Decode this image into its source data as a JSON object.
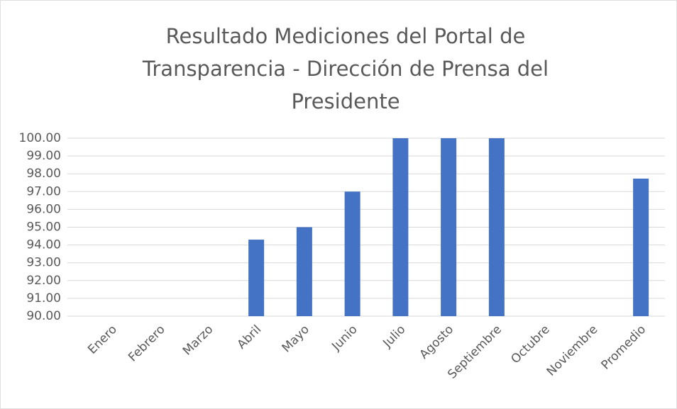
{
  "chart_data": {
    "type": "bar",
    "title": "Resultado Mediciones del Portal de Transparencia - Dirección de Prensa del Presidente",
    "categories": [
      "Enero",
      "Febrero",
      "Marzo",
      "Abril",
      "Mayo",
      "Junio",
      "Julio",
      "Agosto",
      "Septiembre",
      "Octubre",
      "Noviembre",
      "Promedio"
    ],
    "values": [
      null,
      null,
      null,
      94.3,
      95,
      97,
      100,
      100,
      100,
      null,
      null,
      97.73
    ],
    "color": "#4472c4",
    "ylim": [
      90,
      100
    ],
    "yticks": [
      {
        "value": 90,
        "label": "90.00"
      },
      {
        "value": 91,
        "label": "91.00"
      },
      {
        "value": 92,
        "label": "92.00"
      },
      {
        "value": 93,
        "label": "93.00"
      },
      {
        "value": 94,
        "label": "94.00"
      },
      {
        "value": 95,
        "label": "95.00"
      },
      {
        "value": 96,
        "label": "96.00"
      },
      {
        "value": 97,
        "label": "97.00"
      },
      {
        "value": 98,
        "label": "98.00"
      },
      {
        "value": 99,
        "label": "99.00"
      },
      {
        "value": 100,
        "label": "100.00"
      }
    ],
    "grid": true
  }
}
